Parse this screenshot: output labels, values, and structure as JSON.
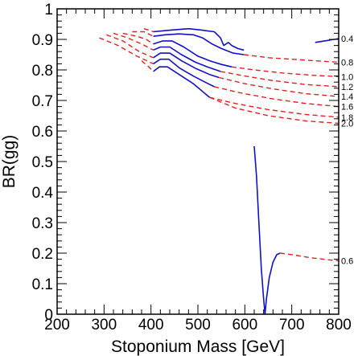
{
  "chart_data": {
    "type": "line",
    "xlabel": "Stoponium Mass  [GeV]",
    "ylabel": "BR(gg)",
    "xlim": [
      200,
      800
    ],
    "ylim": [
      0,
      1
    ],
    "xticks": [
      "200",
      "300",
      "400",
      "500",
      "600",
      "700",
      "800"
    ],
    "yticks": [
      "0",
      "0.1",
      "0.2",
      "0.3",
      "0.4",
      "0.5",
      "0.6",
      "0.7",
      "0.8",
      "0.9",
      "1"
    ],
    "grid": false,
    "colors": {
      "solid": "#1010c8",
      "dashed": "#e02020"
    },
    "series": [
      {
        "label": "0.4",
        "solid": [
          [
            405,
            0.925
          ],
          [
            440,
            0.93
          ],
          [
            480,
            0.935
          ],
          [
            510,
            0.93
          ],
          [
            535,
            0.925
          ],
          [
            548,
            0.905
          ],
          [
            555,
            0.88
          ],
          [
            565,
            0.89
          ],
          [
            572,
            0.88
          ],
          [
            585,
            0.87
          ],
          [
            598,
            0.865
          ]
        ],
        "dashed": [
          [
            385,
            0.935
          ],
          [
            397,
            0.93
          ],
          [
            405,
            0.925
          ]
        ],
        "solid2": [
          [
            750,
            0.89
          ],
          [
            770,
            0.895
          ],
          [
            790,
            0.9
          ],
          [
            800,
            0.902
          ]
        ]
      },
      {
        "label": "0.8",
        "solid": [
          [
            405,
            0.91
          ],
          [
            430,
            0.915
          ],
          [
            460,
            0.918
          ],
          [
            490,
            0.915
          ],
          [
            510,
            0.905
          ],
          [
            530,
            0.885
          ],
          [
            550,
            0.87
          ],
          [
            575,
            0.855
          ],
          [
            598,
            0.85
          ]
        ],
        "dashed": [
          [
            360,
            0.925
          ],
          [
            385,
            0.925
          ],
          [
            405,
            0.91
          ]
        ],
        "dashed2": [
          [
            598,
            0.85
          ],
          [
            650,
            0.84
          ],
          [
            700,
            0.835
          ],
          [
            750,
            0.83
          ],
          [
            800,
            0.825
          ]
        ]
      },
      {
        "label": "1.0",
        "solid": [
          [
            405,
            0.885
          ],
          [
            425,
            0.895
          ],
          [
            445,
            0.895
          ],
          [
            470,
            0.875
          ],
          [
            500,
            0.845
          ],
          [
            525,
            0.83
          ],
          [
            550,
            0.818
          ],
          [
            572,
            0.81
          ]
        ],
        "dashed": [
          [
            340,
            0.92
          ],
          [
            370,
            0.91
          ],
          [
            390,
            0.9
          ],
          [
            405,
            0.885
          ]
        ],
        "dashed2": [
          [
            572,
            0.81
          ],
          [
            620,
            0.8
          ],
          [
            680,
            0.79
          ],
          [
            740,
            0.783
          ],
          [
            800,
            0.778
          ]
        ]
      },
      {
        "label": "1.2",
        "solid": [
          [
            405,
            0.865
          ],
          [
            420,
            0.875
          ],
          [
            440,
            0.875
          ],
          [
            465,
            0.85
          ],
          [
            495,
            0.825
          ],
          [
            520,
            0.81
          ],
          [
            548,
            0.795
          ]
        ],
        "dashed": [
          [
            320,
            0.92
          ],
          [
            350,
            0.905
          ],
          [
            380,
            0.885
          ],
          [
            405,
            0.865
          ]
        ],
        "dashed2": [
          [
            548,
            0.795
          ],
          [
            600,
            0.78
          ],
          [
            660,
            0.765
          ],
          [
            730,
            0.752
          ],
          [
            800,
            0.745
          ]
        ]
      },
      {
        "label": "1.4",
        "solid": [
          [
            405,
            0.84
          ],
          [
            420,
            0.855
          ],
          [
            440,
            0.855
          ],
          [
            465,
            0.83
          ],
          [
            495,
            0.805
          ],
          [
            525,
            0.785
          ],
          [
            545,
            0.775
          ]
        ],
        "dashed": [
          [
            305,
            0.915
          ],
          [
            340,
            0.895
          ],
          [
            375,
            0.86
          ],
          [
            405,
            0.84
          ]
        ],
        "dashed2": [
          [
            545,
            0.775
          ],
          [
            600,
            0.755
          ],
          [
            660,
            0.738
          ],
          [
            730,
            0.722
          ],
          [
            800,
            0.713
          ]
        ]
      },
      {
        "label": "1.6",
        "solid": [
          [
            405,
            0.82
          ],
          [
            420,
            0.835
          ],
          [
            438,
            0.835
          ],
          [
            462,
            0.805
          ],
          [
            490,
            0.78
          ],
          [
            515,
            0.76
          ],
          [
            535,
            0.745
          ]
        ],
        "dashed": [
          [
            290,
            0.905
          ],
          [
            330,
            0.88
          ],
          [
            370,
            0.845
          ],
          [
            405,
            0.82
          ]
        ],
        "dashed2": [
          [
            535,
            0.745
          ],
          [
            590,
            0.725
          ],
          [
            660,
            0.705
          ],
          [
            730,
            0.69
          ],
          [
            800,
            0.68
          ]
        ]
      },
      {
        "label": "1.8",
        "solid": [
          [
            405,
            0.795
          ],
          [
            418,
            0.81
          ],
          [
            435,
            0.81
          ],
          [
            460,
            0.785
          ],
          [
            490,
            0.755
          ],
          [
            525,
            0.71
          ]
        ],
        "dashed": [
          [
            380,
            0.83
          ],
          [
            395,
            0.81
          ],
          [
            405,
            0.795
          ]
        ],
        "dashed2": [
          [
            525,
            0.71
          ],
          [
            580,
            0.69
          ],
          [
            650,
            0.67
          ],
          [
            730,
            0.654
          ],
          [
            800,
            0.645
          ]
        ]
      },
      {
        "label": "2.0",
        "dashed2": [
          [
            525,
            0.71
          ],
          [
            580,
            0.675
          ],
          [
            650,
            0.65
          ],
          [
            730,
            0.633
          ],
          [
            800,
            0.625
          ]
        ]
      },
      {
        "label": "0.6",
        "solid": [
          [
            620,
            0.55
          ],
          [
            625,
            0.45
          ],
          [
            630,
            0.3
          ],
          [
            635,
            0.15
          ],
          [
            640,
            0.05
          ],
          [
            643,
            0.0
          ],
          [
            646,
            0.05
          ],
          [
            652,
            0.12
          ],
          [
            660,
            0.17
          ],
          [
            668,
            0.195
          ],
          [
            675,
            0.2
          ]
        ],
        "dashed2": [
          [
            675,
            0.2
          ],
          [
            700,
            0.195
          ],
          [
            740,
            0.185
          ],
          [
            780,
            0.178
          ],
          [
            800,
            0.175
          ]
        ]
      }
    ]
  }
}
